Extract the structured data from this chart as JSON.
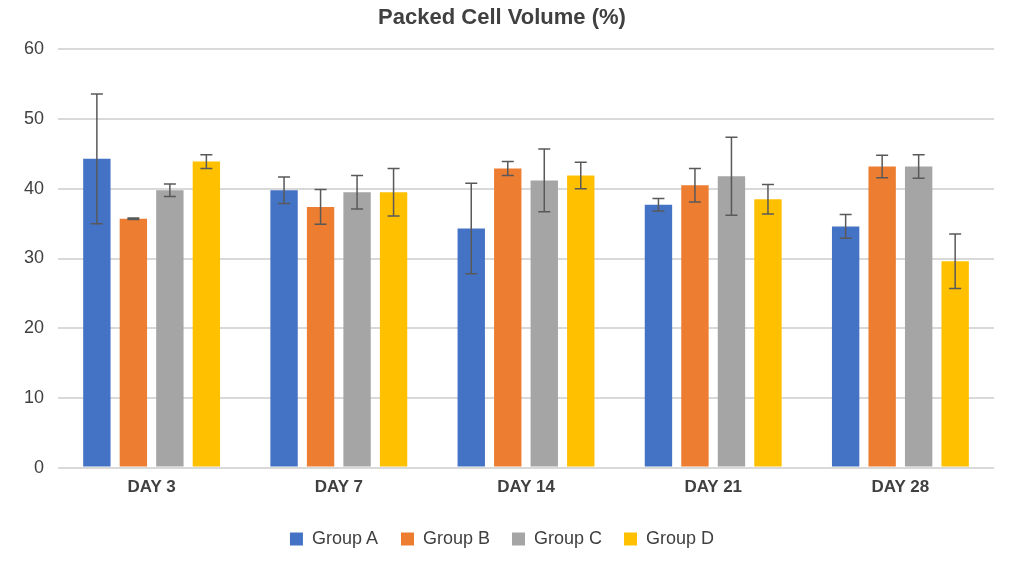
{
  "chart_data": {
    "type": "bar",
    "title": "Packed Cell Volume (%)",
    "categories": [
      "DAY 3",
      "DAY 7",
      "DAY 14",
      "DAY 21",
      "DAY 28"
    ],
    "series": [
      {
        "name": "Group A",
        "color": "#4472c4",
        "values": [
          44.3,
          39.8,
          34.3,
          37.7,
          34.6
        ],
        "errors": [
          9.3,
          1.9,
          6.5,
          0.9,
          1.7
        ]
      },
      {
        "name": "Group B",
        "color": "#ed7d31",
        "values": [
          35.7,
          37.4,
          42.9,
          40.5,
          43.2
        ],
        "errors": [
          0.1,
          2.5,
          1,
          2.4,
          1.6
        ]
      },
      {
        "name": "Group C",
        "color": "#a5a5a5",
        "values": [
          39.8,
          39.5,
          41.2,
          41.8,
          43.2
        ],
        "errors": [
          0.9,
          2.4,
          4.5,
          5.6,
          1.7
        ]
      },
      {
        "name": "Group D",
        "color": "#ffc000",
        "values": [
          43.9,
          39.5,
          41.9,
          38.5,
          29.6
        ],
        "errors": [
          1,
          3.4,
          1.9,
          2.1,
          3.9
        ]
      }
    ],
    "ylim": [
      0,
      60
    ],
    "yticks": [
      0,
      10,
      20,
      30,
      40,
      50,
      60
    ],
    "grid": "y",
    "legend": "bottom"
  }
}
